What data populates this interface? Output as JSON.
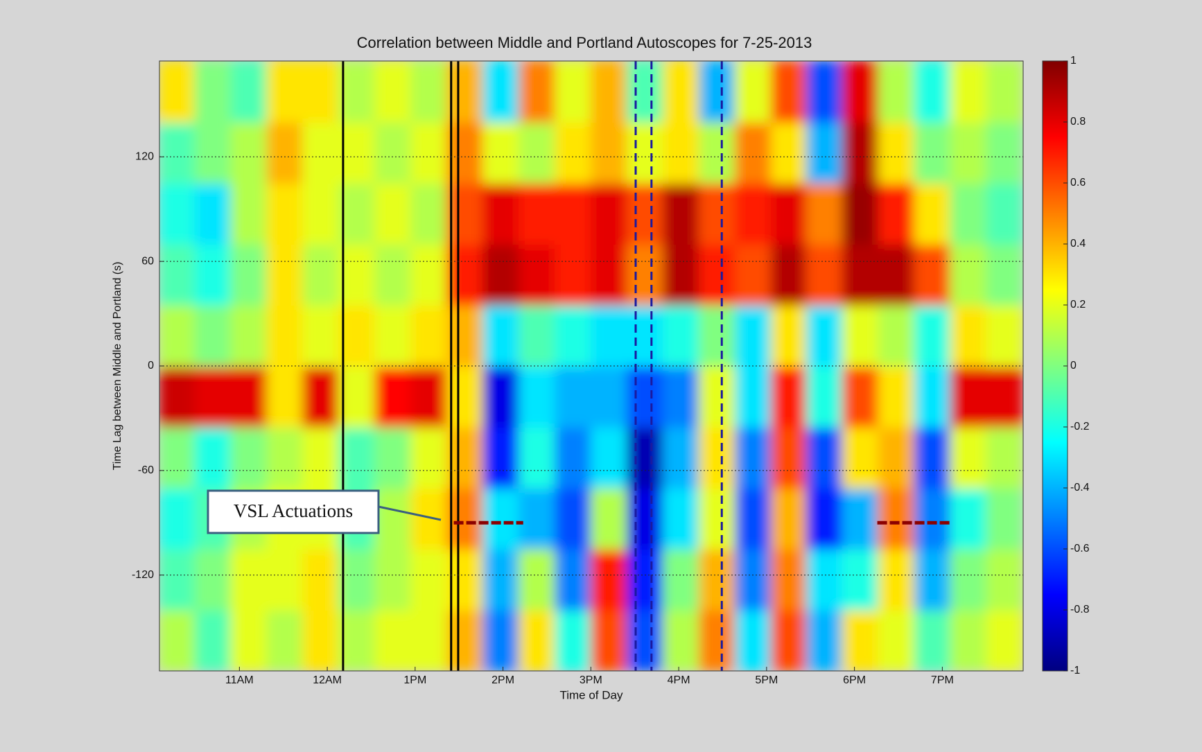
{
  "chart_data": {
    "type": "heatmap",
    "title": "Correlation between Middle and Portland Autoscopes for 7-25-2013",
    "x_label": "Time of Day",
    "y_label": "Time Lag between Middle and Portland (s)",
    "xlim": [
      10.09,
      19.92
    ],
    "ylim": [
      -175,
      175
    ],
    "xticks": [
      {
        "value": 11,
        "label": "11AM"
      },
      {
        "value": 12,
        "label": "12AM"
      },
      {
        "value": 13,
        "label": "1PM"
      },
      {
        "value": 14,
        "label": "2PM"
      },
      {
        "value": 15,
        "label": "3PM"
      },
      {
        "value": 16,
        "label": "4PM"
      },
      {
        "value": 17,
        "label": "5PM"
      },
      {
        "value": 18,
        "label": "6PM"
      },
      {
        "value": 19,
        "label": "7PM"
      }
    ],
    "yticks": [
      -120,
      -60,
      0,
      60,
      120
    ],
    "grid": "y",
    "colormap": "jet",
    "clim": [
      -1,
      1
    ],
    "cticks": [
      -1,
      -0.8,
      -0.6,
      -0.4,
      -0.2,
      0,
      0.2,
      0.4,
      0.6,
      0.8,
      1
    ],
    "x": [
      10.29,
      10.7,
      11.11,
      11.52,
      11.93,
      12.34,
      12.75,
      13.16,
      13.57,
      13.98,
      14.39,
      14.8,
      15.21,
      15.62,
      16.03,
      16.44,
      16.85,
      17.26,
      17.66,
      18.07,
      18.48,
      18.89,
      19.3,
      19.71
    ],
    "y": [
      -157.5,
      -122.5,
      -87.5,
      -52.5,
      -17.5,
      17.5,
      52.5,
      87.5,
      122.5,
      157.5
    ],
    "z": [
      [
        0.1,
        -0.1,
        0.2,
        0.1,
        0.3,
        0.1,
        0.2,
        0.2,
        0.4,
        -0.5,
        0.3,
        -0.2,
        0.6,
        -0.6,
        0.1,
        0.5,
        -0.3,
        0.6,
        -0.4,
        0.3,
        0.2,
        -0.1,
        0.1,
        0.2
      ],
      [
        -0.1,
        0.0,
        0.2,
        0.2,
        0.3,
        0.0,
        0.1,
        0.2,
        0.3,
        -0.4,
        0.1,
        -0.5,
        0.7,
        -0.7,
        0.0,
        0.4,
        -0.5,
        0.5,
        -0.3,
        -0.2,
        0.3,
        -0.4,
        0.0,
        0.1
      ],
      [
        -0.2,
        -0.1,
        0.1,
        0.2,
        0.2,
        -0.1,
        0.1,
        0.3,
        0.5,
        -0.3,
        -0.4,
        -0.6,
        0.1,
        -0.8,
        -0.3,
        0.2,
        -0.6,
        0.4,
        -0.7,
        -0.4,
        0.5,
        -0.5,
        -0.2,
        0.0
      ],
      [
        0.0,
        -0.2,
        0.0,
        0.1,
        0.2,
        -0.1,
        0.0,
        0.2,
        0.4,
        -0.7,
        -0.2,
        -0.5,
        -0.3,
        -0.9,
        -0.4,
        0.3,
        -0.5,
        0.6,
        -0.6,
        0.3,
        0.4,
        -0.6,
        0.2,
        0.1
      ],
      [
        0.85,
        0.8,
        0.8,
        0.3,
        0.8,
        0.2,
        0.75,
        0.8,
        0.3,
        -0.8,
        -0.3,
        -0.4,
        -0.4,
        -0.6,
        -0.5,
        0.2,
        -0.3,
        0.7,
        -0.2,
        0.6,
        0.3,
        -0.3,
        0.8,
        0.8
      ],
      [
        0.1,
        0.0,
        0.1,
        0.3,
        0.2,
        0.3,
        0.2,
        0.3,
        0.4,
        -0.3,
        -0.1,
        -0.2,
        -0.3,
        -0.3,
        -0.2,
        0.0,
        -0.3,
        0.3,
        -0.3,
        0.2,
        0.1,
        -0.2,
        0.3,
        0.2
      ],
      [
        -0.1,
        -0.2,
        0.0,
        0.3,
        0.1,
        0.2,
        0.1,
        0.2,
        0.7,
        0.9,
        0.8,
        0.7,
        0.8,
        0.5,
        0.9,
        0.7,
        0.6,
        0.9,
        0.6,
        0.9,
        0.9,
        0.6,
        0.1,
        0.0
      ],
      [
        -0.2,
        -0.3,
        0.1,
        0.3,
        0.2,
        0.1,
        0.2,
        0.1,
        0.6,
        0.8,
        0.7,
        0.7,
        0.8,
        0.6,
        0.9,
        0.6,
        0.7,
        0.8,
        0.5,
        0.95,
        0.7,
        0.3,
        0.0,
        -0.1
      ],
      [
        -0.1,
        0.0,
        0.1,
        0.4,
        0.2,
        0.2,
        0.1,
        0.2,
        0.5,
        0.2,
        0.1,
        0.3,
        0.4,
        0.2,
        0.3,
        0.1,
        0.5,
        0.3,
        -0.4,
        0.9,
        0.3,
        0.0,
        0.1,
        0.0
      ],
      [
        0.3,
        0.0,
        -0.1,
        0.3,
        0.3,
        0.1,
        0.2,
        0.1,
        0.4,
        -0.3,
        0.5,
        0.2,
        0.4,
        -0.1,
        0.3,
        -0.4,
        0.2,
        0.6,
        -0.6,
        0.8,
        0.1,
        -0.2,
        0.2,
        0.1
      ]
    ],
    "solid_lines_x": [
      12.18,
      13.41,
      13.49
    ],
    "dashed_lines_x": [
      15.51,
      15.69,
      16.49
    ],
    "annotation": "VSL Actuations",
    "vsl_lag": -90,
    "vsl_intervals": [
      [
        13.44,
        14.23
      ],
      [
        18.26,
        19.09
      ]
    ]
  }
}
